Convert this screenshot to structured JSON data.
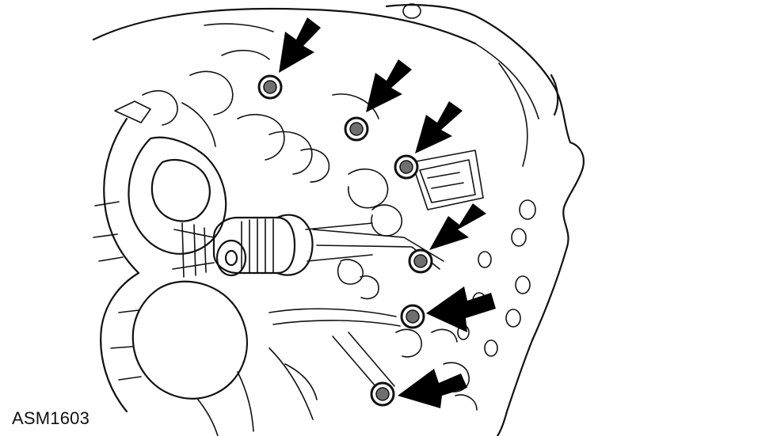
{
  "figure": {
    "code": "ASM1603"
  },
  "illustration": {
    "subject": "transmission-case-with-bolts",
    "bolt_count": 6,
    "arrow_count": 6,
    "colors": {
      "line": "#111111",
      "arrow": "#000000",
      "bolt_fill": "#6f6f6f",
      "background": "#ffffff"
    }
  }
}
